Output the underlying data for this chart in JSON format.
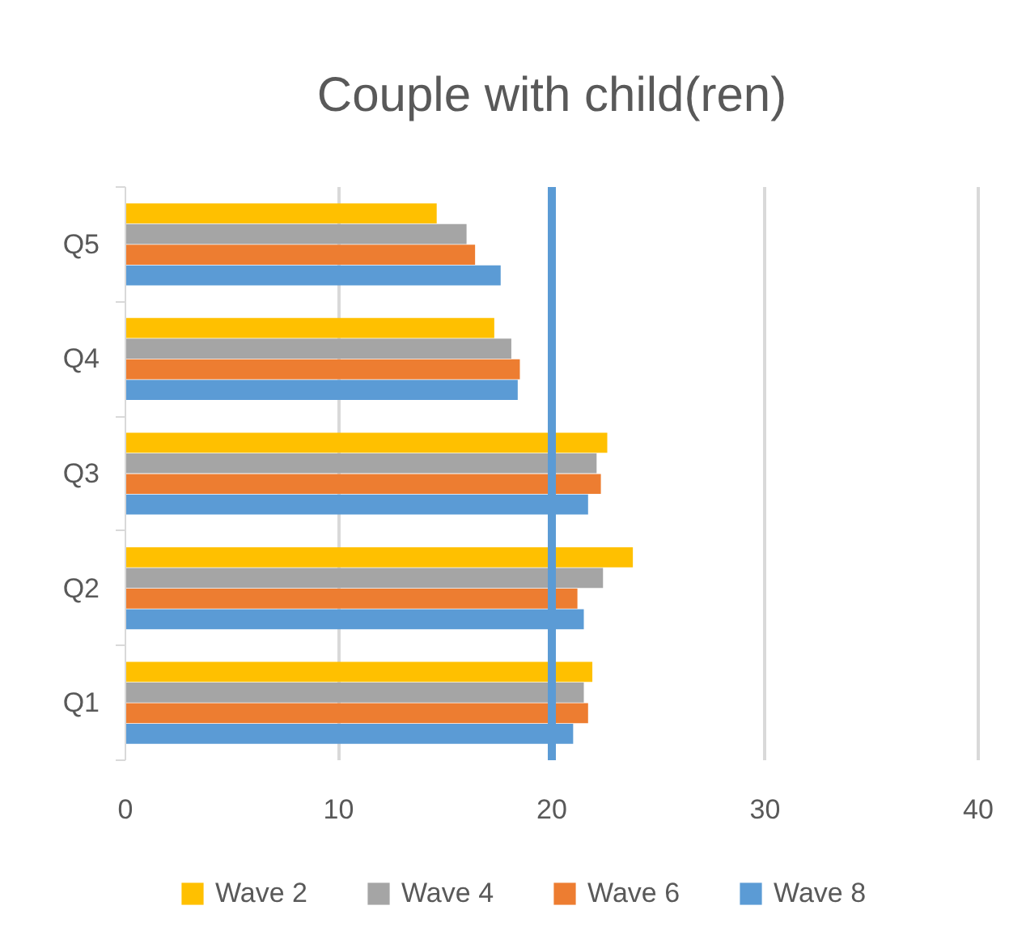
{
  "chart_data": {
    "type": "bar",
    "orientation": "horizontal",
    "title": "Couple with child(ren)",
    "categories": [
      "Q5",
      "Q4",
      "Q3",
      "Q2",
      "Q1"
    ],
    "series": [
      {
        "name": "Wave 2",
        "color": "#ffc000",
        "values": [
          14.6,
          17.3,
          22.6,
          23.8,
          21.9
        ]
      },
      {
        "name": "Wave 4",
        "color": "#a5a5a5",
        "values": [
          16.0,
          18.1,
          22.1,
          22.4,
          21.5
        ]
      },
      {
        "name": "Wave 6",
        "color": "#ed7d31",
        "values": [
          16.4,
          18.5,
          22.3,
          21.2,
          21.7
        ]
      },
      {
        "name": "Wave 8",
        "color": "#5b9bd5",
        "values": [
          17.6,
          18.4,
          21.7,
          21.5,
          21.0
        ]
      }
    ],
    "xlim": [
      0,
      40
    ],
    "xticks": [
      0,
      10,
      20,
      30,
      40
    ],
    "grid": "x",
    "legend": "bottom",
    "ref_lines": [
      {
        "axis": "x",
        "value": 20,
        "color": "#5b9bd5"
      }
    ]
  }
}
